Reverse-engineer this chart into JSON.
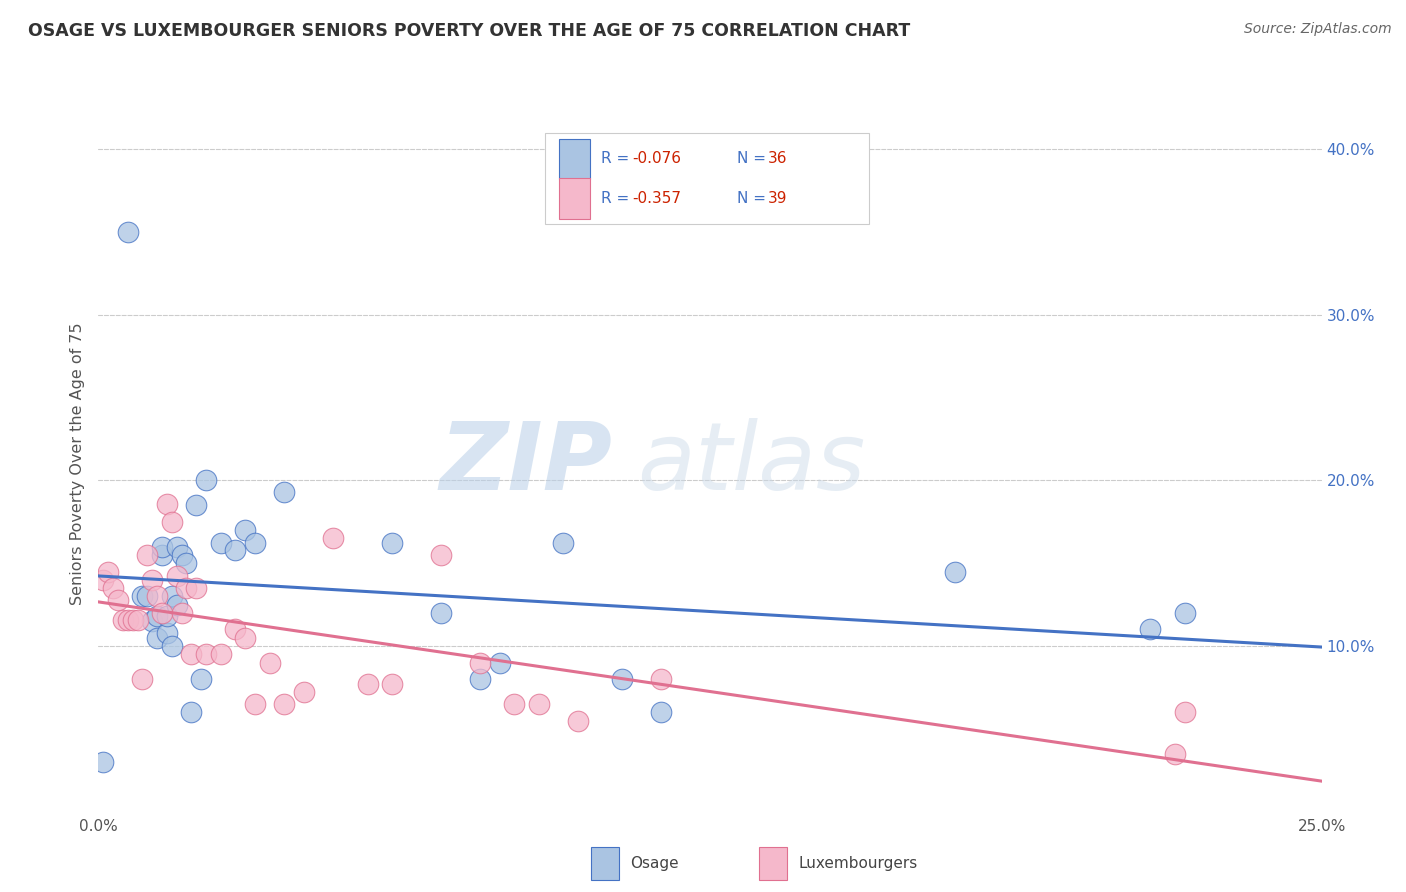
{
  "title": "OSAGE VS LUXEMBOURGER SENIORS POVERTY OVER THE AGE OF 75 CORRELATION CHART",
  "source": "Source: ZipAtlas.com",
  "ylabel": "Seniors Poverty Over the Age of 75",
  "xlim": [
    0.0,
    0.25
  ],
  "ylim": [
    0.0,
    0.42
  ],
  "xticks": [
    0.0,
    0.05,
    0.1,
    0.15,
    0.2,
    0.25
  ],
  "xtick_labels": [
    "0.0%",
    "",
    "",
    "",
    "",
    "25.0%"
  ],
  "ytick_vals": [
    0.1,
    0.2,
    0.3,
    0.4
  ],
  "ytick_labels_right": [
    "10.0%",
    "20.0%",
    "30.0%",
    "40.0%"
  ],
  "legend_r_blue": "-0.076",
  "legend_n_blue": "36",
  "legend_r_pink": "-0.357",
  "legend_n_pink": "39",
  "legend_label_blue": "Osage",
  "legend_label_pink": "Luxembourgers",
  "blue_fill": "#aac4e2",
  "pink_fill": "#f5b8cb",
  "blue_edge": "#4472c4",
  "pink_edge": "#e07090",
  "blue_line": "#4472c4",
  "pink_line": "#e07090",
  "watermark_zip": "ZIP",
  "watermark_atlas": "atlas",
  "background_color": "#ffffff",
  "grid_color": "#cccccc",
  "osage_x": [
    0.001,
    0.006,
    0.009,
    0.01,
    0.011,
    0.012,
    0.012,
    0.013,
    0.013,
    0.014,
    0.014,
    0.015,
    0.015,
    0.016,
    0.016,
    0.017,
    0.018,
    0.019,
    0.02,
    0.021,
    0.022,
    0.025,
    0.028,
    0.03,
    0.032,
    0.038,
    0.06,
    0.07,
    0.078,
    0.082,
    0.095,
    0.107,
    0.115,
    0.175,
    0.215,
    0.222
  ],
  "osage_y": [
    0.03,
    0.35,
    0.13,
    0.13,
    0.115,
    0.105,
    0.118,
    0.155,
    0.16,
    0.108,
    0.118,
    0.13,
    0.1,
    0.16,
    0.125,
    0.155,
    0.15,
    0.06,
    0.185,
    0.08,
    0.2,
    0.162,
    0.158,
    0.17,
    0.162,
    0.193,
    0.162,
    0.12,
    0.08,
    0.09,
    0.162,
    0.08,
    0.06,
    0.145,
    0.11,
    0.12
  ],
  "lux_x": [
    0.001,
    0.002,
    0.003,
    0.004,
    0.005,
    0.006,
    0.007,
    0.008,
    0.009,
    0.01,
    0.011,
    0.012,
    0.013,
    0.014,
    0.015,
    0.016,
    0.017,
    0.018,
    0.019,
    0.02,
    0.022,
    0.025,
    0.028,
    0.03,
    0.032,
    0.035,
    0.038,
    0.042,
    0.048,
    0.055,
    0.06,
    0.07,
    0.078,
    0.085,
    0.09,
    0.098,
    0.115,
    0.22,
    0.222
  ],
  "lux_y": [
    0.14,
    0.145,
    0.135,
    0.128,
    0.116,
    0.116,
    0.116,
    0.116,
    0.08,
    0.155,
    0.14,
    0.13,
    0.12,
    0.186,
    0.175,
    0.142,
    0.12,
    0.135,
    0.095,
    0.135,
    0.095,
    0.095,
    0.11,
    0.105,
    0.065,
    0.09,
    0.065,
    0.072,
    0.165,
    0.077,
    0.077,
    0.155,
    0.09,
    0.065,
    0.065,
    0.055,
    0.08,
    0.035,
    0.06
  ]
}
